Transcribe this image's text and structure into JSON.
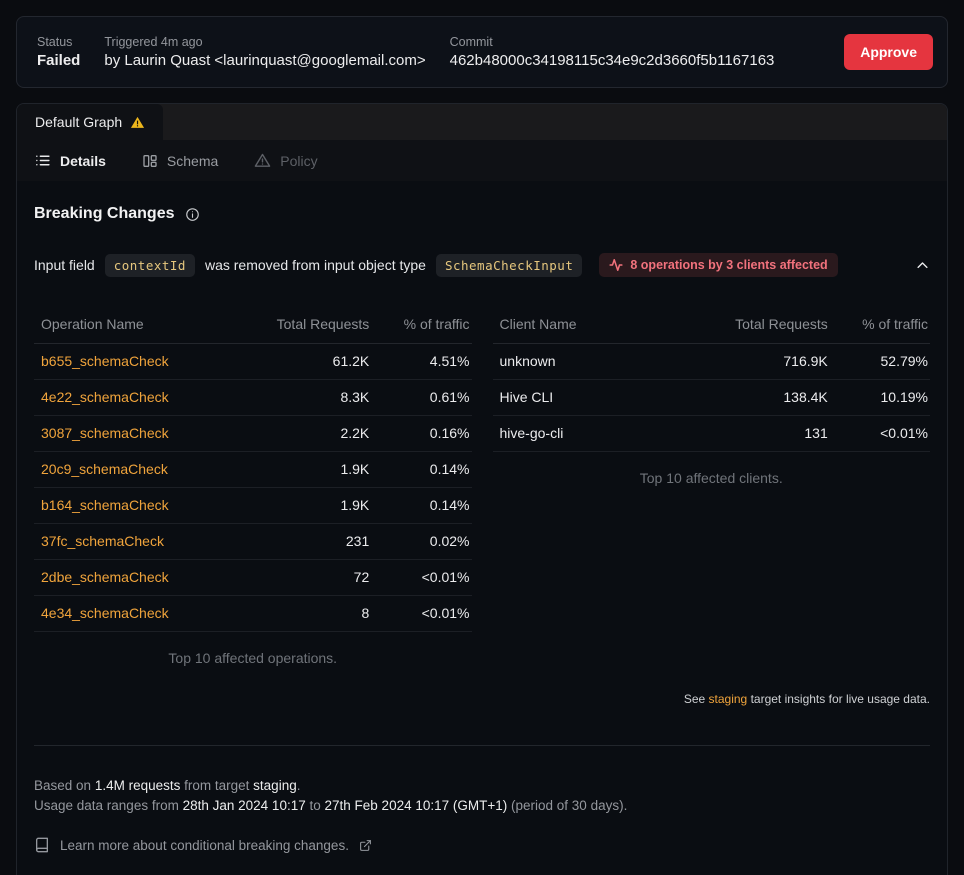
{
  "header": {
    "status_label": "Status",
    "status_value": "Failed",
    "triggered_label": "Triggered 4m ago",
    "triggered_by": "by Laurin Quast <laurinquast@googlemail.com>",
    "commit_label": "Commit",
    "commit_hash": "462b48000c34198115c34e9c2d3660f5b1167163",
    "approve_label": "Approve"
  },
  "tabs": {
    "active_label": "Default Graph",
    "warning_icon": "warning-triangle"
  },
  "subtabs": [
    {
      "label": "Details",
      "icon": "list-icon",
      "state": "active"
    },
    {
      "label": "Schema",
      "icon": "schema-icon",
      "state": "inactive"
    },
    {
      "label": "Policy",
      "icon": "warning-icon",
      "state": "disabled"
    }
  ],
  "breaking_changes": {
    "title": "Breaking Changes",
    "change": {
      "prefix": "Input field",
      "field_code": "contextId",
      "middle": "was removed from input object type",
      "type_code": "SchemaCheckInput",
      "badge": "8 operations by 3 clients affected"
    }
  },
  "operations_table": {
    "headers": [
      "Operation Name",
      "Total Requests",
      "% of traffic"
    ],
    "rows": [
      {
        "name": "b655_schemaCheck",
        "requests": "61.2K",
        "traffic": "4.51%"
      },
      {
        "name": "4e22_schemaCheck",
        "requests": "8.3K",
        "traffic": "0.61%"
      },
      {
        "name": "3087_schemaCheck",
        "requests": "2.2K",
        "traffic": "0.16%"
      },
      {
        "name": "20c9_schemaCheck",
        "requests": "1.9K",
        "traffic": "0.14%"
      },
      {
        "name": "b164_schemaCheck",
        "requests": "1.9K",
        "traffic": "0.14%"
      },
      {
        "name": "37fc_schemaCheck",
        "requests": "231",
        "traffic": "0.02%"
      },
      {
        "name": "2dbe_schemaCheck",
        "requests": "72",
        "traffic": "<0.01%"
      },
      {
        "name": "4e34_schemaCheck",
        "requests": "8",
        "traffic": "<0.01%"
      }
    ],
    "caption": "Top 10 affected operations."
  },
  "clients_table": {
    "headers": [
      "Client Name",
      "Total Requests",
      "% of traffic"
    ],
    "rows": [
      {
        "name": "unknown",
        "requests": "716.9K",
        "traffic": "52.79%"
      },
      {
        "name": "Hive CLI",
        "requests": "138.4K",
        "traffic": "10.19%"
      },
      {
        "name": "hive-go-cli",
        "requests": "131",
        "traffic": "<0.01%"
      }
    ],
    "caption": "Top 10 affected clients."
  },
  "see_line": {
    "prefix": "See",
    "link": "staging",
    "suffix": "target insights for live usage data."
  },
  "footer": {
    "based_prefix": "Based on",
    "requests": "1.4M requests",
    "from_target": "from target",
    "target": "staging",
    "dot": ".",
    "period_prefix": "Usage data ranges from",
    "date_from": "28th Jan 2024 10:17",
    "to": "to",
    "date_to": "27th Feb 2024 10:17 (GMT+1)",
    "period_suffix": "(period of 30 days).",
    "learn_more": "Learn more about conditional breaking changes."
  },
  "colors": {
    "accent_orange": "#f0a43c",
    "approve_red": "#e5353f",
    "badge_red": "#f2727d",
    "code_gold": "#e6c77e",
    "warning_yellow": "#edb61c"
  }
}
